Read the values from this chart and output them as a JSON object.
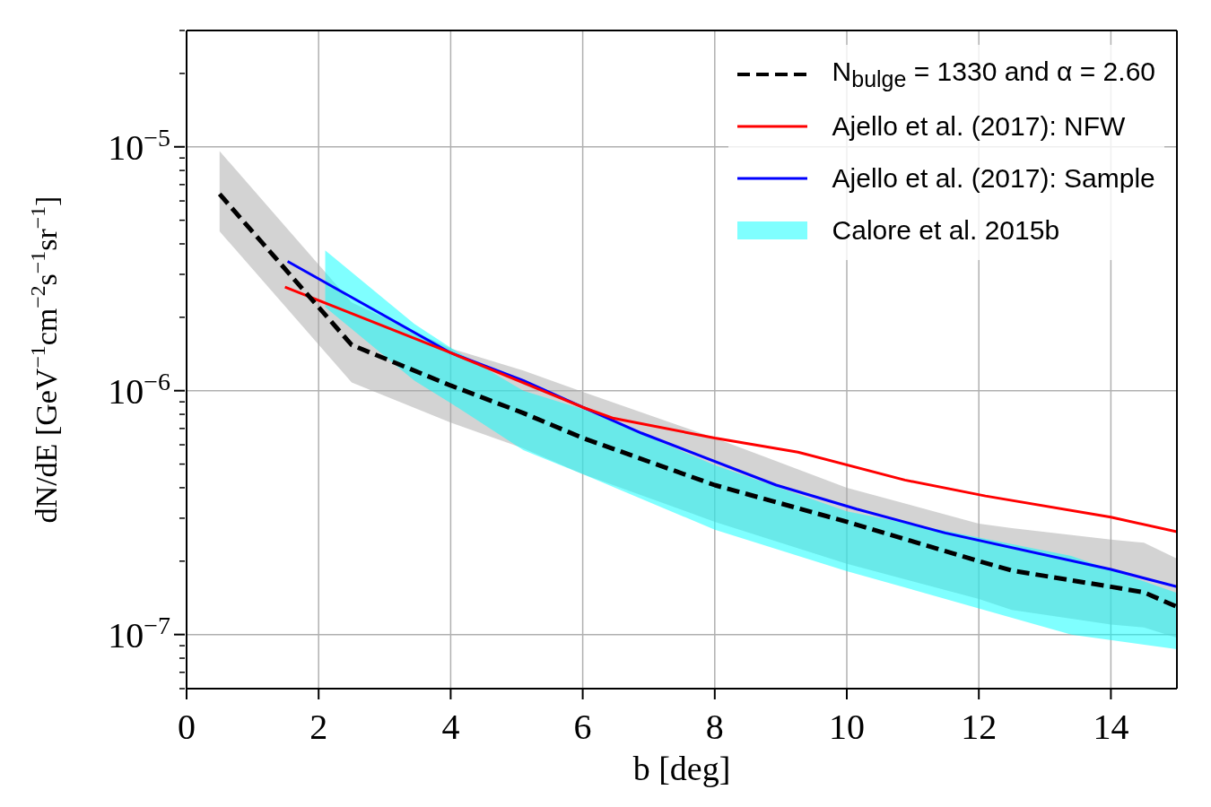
{
  "chart_data": {
    "type": "line",
    "xlabel": "b [deg]",
    "ylabel": "dN/dE [GeV$^{−1}$cm$^{−2}$s$^{−1}$sr$^{−1}$]",
    "log": "y",
    "grid": true,
    "legend": "top right",
    "xlim": [
      0,
      15
    ],
    "xticks": [
      0,
      2,
      4,
      6,
      8,
      10,
      12,
      14
    ],
    "ylim": [
      6e-08,
      3e-05
    ],
    "yticks": [
      {
        "value": 6e-08,
        "label": null
      },
      {
        "value": 7e-08,
        "label": null
      },
      {
        "value": 8e-08,
        "label": null
      },
      {
        "value": 9e-08,
        "label": null
      },
      {
        "value": 1e-07,
        "label": "10$^{−7}$"
      },
      {
        "value": 2e-07,
        "label": null
      },
      {
        "value": 3e-07,
        "label": null
      },
      {
        "value": 4e-07,
        "label": null
      },
      {
        "value": 5e-07,
        "label": null
      },
      {
        "value": 6e-07,
        "label": null
      },
      {
        "value": 7e-07,
        "label": null
      },
      {
        "value": 8e-07,
        "label": null
      },
      {
        "value": 9e-07,
        "label": null
      },
      {
        "value": 1e-06,
        "label": "10$^{−6}$"
      },
      {
        "value": 2e-06,
        "label": null
      },
      {
        "value": 3e-06,
        "label": null
      },
      {
        "value": 4e-06,
        "label": null
      },
      {
        "value": 5e-06,
        "label": null
      },
      {
        "value": 6e-06,
        "label": null
      },
      {
        "value": 7e-06,
        "label": null
      },
      {
        "value": 8e-06,
        "label": null
      },
      {
        "value": 9e-06,
        "label": null
      },
      {
        "value": 1e-05,
        "label": "10$^{−5}$"
      },
      {
        "value": 2e-05,
        "label": null
      },
      {
        "value": 3e-05,
        "label": null
      }
    ],
    "series": [
      {
        "color": "#a8a8a8",
        "x": [
          0.5,
          2.5,
          4,
          5.1,
          6,
          8,
          10,
          12,
          12.5,
          14,
          14.5,
          15
        ],
        "values": [
          null,
          null,
          null,
          null,
          null,
          null,
          null,
          null,
          null,
          null,
          null,
          null
        ],
        "lower": [
          4.5e-06,
          1.08e-06,
          7.4e-07,
          5.8e-07,
          4.55e-07,
          2.9e-07,
          1.95e-07,
          1.4e-07,
          1.26e-07,
          1.1e-07,
          1.07e-07,
          9.7e-08
        ],
        "upper": [
          9.6e-06,
          2.3e-06,
          1.49e-06,
          1.21e-06,
          9.9e-07,
          6.4e-07,
          4e-07,
          2.85e-07,
          2.73e-07,
          2.45e-07,
          2.38e-07,
          2.05e-07
        ]
      },
      {
        "name": "N$_{bulge}$ = 1330 and α = 2.60",
        "color": "#000000",
        "line_style": "dashed",
        "x": [
          0.5,
          2.5,
          4,
          5.1,
          6,
          8,
          10,
          12,
          12.5,
          14,
          14.5,
          15
        ],
        "values": [
          6.4e-06,
          1.54e-06,
          1.05e-06,
          8.1e-07,
          6.4e-07,
          4.1e-07,
          2.9e-07,
          2e-07,
          1.83e-07,
          1.57e-07,
          1.49e-07,
          1.3e-07
        ]
      },
      {
        "name": "Ajello et al. (2017): NFW",
        "color": "#ff0000",
        "line_style": "solid",
        "x": [
          1.49,
          4,
          6,
          6.47,
          8,
          9.26,
          10.88,
          12.1,
          14,
          15
        ],
        "values": [
          2.66e-06,
          1.43e-06,
          8.55e-07,
          7.7e-07,
          6.4e-07,
          5.6e-07,
          4.3e-07,
          3.7e-07,
          3.03e-07,
          2.64e-07
        ]
      },
      {
        "name": "Ajello et al. (2017): Sample",
        "color": "#0000ff",
        "line_style": "solid",
        "x": [
          1.53,
          4,
          5.1,
          6,
          6.89,
          8.93,
          10.15,
          11.49,
          14,
          15
        ],
        "values": [
          3.39e-06,
          1.43e-06,
          1.1e-06,
          8.55e-07,
          6.7e-07,
          4.1e-07,
          3.27e-07,
          2.61e-07,
          1.85e-07,
          1.57e-07
        ]
      },
      {
        "name": "Calore et al. 2015b",
        "color": "#00ffff",
        "x": [
          2.1,
          3.45,
          4,
          5.1,
          6,
          8,
          10,
          13.4,
          15
        ],
        "values": [
          null,
          null,
          null,
          null,
          null,
          null,
          null,
          null,
          null
        ],
        "lower": [
          2.2e-06,
          1.1e-06,
          8.9e-07,
          5.7e-07,
          4.55e-07,
          2.69e-07,
          1.82e-07,
          1e-07,
          8.7e-08
        ],
        "upper": [
          3.76e-06,
          1.88e-06,
          1.5e-06,
          1e-06,
          8.4e-07,
          4.95e-07,
          3.2e-07,
          2.1e-07,
          1.48e-07
        ]
      }
    ]
  }
}
